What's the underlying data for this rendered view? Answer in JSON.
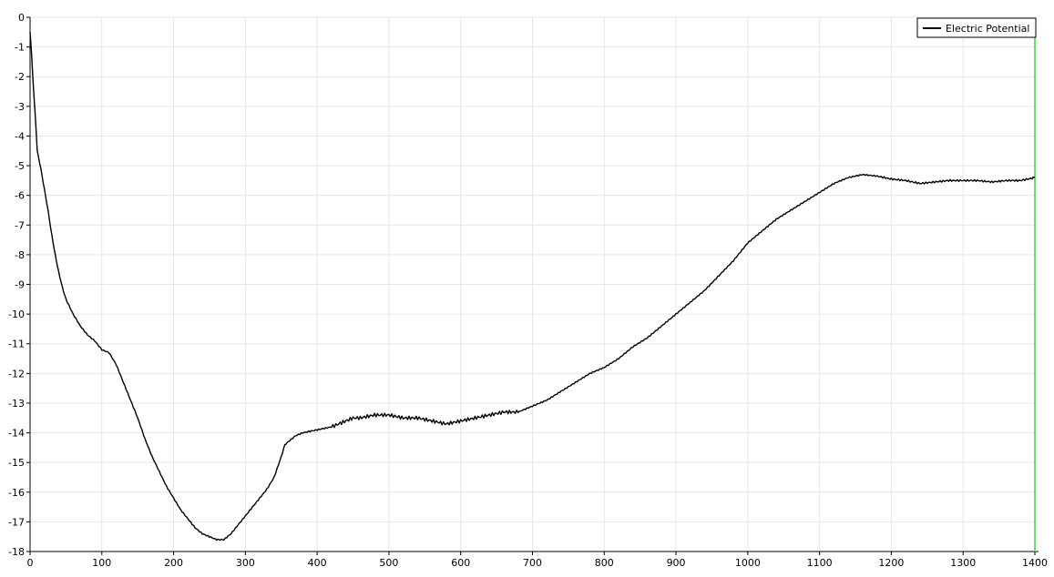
{
  "chart_data": {
    "type": "line",
    "title": "",
    "xlabel": "",
    "ylabel": "",
    "xlim": [
      0,
      1400
    ],
    "ylim": [
      -18,
      0
    ],
    "xticks": [
      0,
      100,
      200,
      300,
      400,
      500,
      600,
      700,
      800,
      900,
      1000,
      1100,
      1200,
      1300,
      1400
    ],
    "yticks": [
      0,
      -1,
      -2,
      -3,
      -4,
      -5,
      -6,
      -7,
      -8,
      -9,
      -10,
      -11,
      -12,
      -13,
      -14,
      -15,
      -16,
      -17,
      -18
    ],
    "grid": true,
    "legend": {
      "position": "top-right",
      "entries": [
        "Electric Potential"
      ]
    },
    "series": [
      {
        "name": "Electric Potential",
        "color": "#000000",
        "x": [
          0,
          2,
          5,
          8,
          10,
          15,
          20,
          25,
          30,
          35,
          40,
          45,
          50,
          60,
          70,
          80,
          90,
          100,
          110,
          120,
          130,
          140,
          150,
          160,
          170,
          180,
          190,
          200,
          210,
          220,
          230,
          240,
          250,
          260,
          265,
          270,
          280,
          290,
          300,
          310,
          320,
          330,
          340,
          350,
          355,
          360,
          370,
          380,
          400,
          420,
          440,
          450,
          460,
          480,
          500,
          520,
          540,
          560,
          580,
          600,
          620,
          640,
          660,
          680,
          700,
          720,
          740,
          760,
          780,
          800,
          820,
          840,
          860,
          880,
          900,
          920,
          940,
          960,
          980,
          1000,
          1020,
          1040,
          1060,
          1080,
          1100,
          1120,
          1140,
          1160,
          1180,
          1200,
          1220,
          1240,
          1260,
          1280,
          1300,
          1320,
          1340,
          1360,
          1380,
          1400
        ],
        "y": [
          -0.5,
          -1.2,
          -2.5,
          -3.6,
          -4.5,
          -5.1,
          -5.8,
          -6.5,
          -7.3,
          -8.0,
          -8.6,
          -9.1,
          -9.5,
          -10.0,
          -10.4,
          -10.7,
          -10.9,
          -11.2,
          -11.3,
          -11.7,
          -12.3,
          -12.9,
          -13.5,
          -14.2,
          -14.8,
          -15.3,
          -15.8,
          -16.2,
          -16.6,
          -16.9,
          -17.2,
          -17.4,
          -17.5,
          -17.6,
          -17.6,
          -17.6,
          -17.4,
          -17.1,
          -16.8,
          -16.5,
          -16.2,
          -15.9,
          -15.5,
          -14.8,
          -14.4,
          -14.3,
          -14.1,
          -14.0,
          -13.9,
          -13.8,
          -13.6,
          -13.5,
          -13.5,
          -13.4,
          -13.4,
          -13.5,
          -13.5,
          -13.6,
          -13.7,
          -13.6,
          -13.5,
          -13.4,
          -13.3,
          -13.3,
          -13.1,
          -12.9,
          -12.6,
          -12.3,
          -12.0,
          -11.8,
          -11.5,
          -11.1,
          -10.8,
          -10.4,
          -10.0,
          -9.6,
          -9.2,
          -8.7,
          -8.2,
          -7.6,
          -7.2,
          -6.8,
          -6.5,
          -6.2,
          -5.9,
          -5.6,
          -5.4,
          -5.3,
          -5.35,
          -5.45,
          -5.5,
          -5.6,
          -5.55,
          -5.5,
          -5.5,
          -5.5,
          -5.55,
          -5.5,
          -5.5,
          -5.4
        ]
      }
    ],
    "marker_line": {
      "x": 1400,
      "color": "#6fdc6f"
    }
  }
}
